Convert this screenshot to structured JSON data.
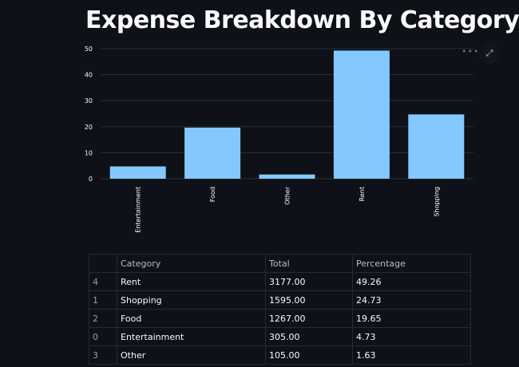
{
  "title": "Expense Breakdown By Category",
  "toolbar": {
    "menu_icon": "ellipsis-icon",
    "expand_icon": "fullscreen-icon"
  },
  "chart_data": {
    "type": "bar",
    "categories": [
      "Entertainment",
      "Food",
      "Other",
      "Rent",
      "Shopping"
    ],
    "values": [
      4.73,
      19.65,
      1.63,
      49.26,
      24.73
    ],
    "yticks": [
      "0",
      "10",
      "20",
      "30",
      "40",
      "50"
    ],
    "ylim": [
      0,
      50
    ],
    "grid": true,
    "color": "#83c9ff"
  },
  "table": {
    "columns": [
      "",
      "Category",
      "Total",
      "Percentage"
    ],
    "rows": [
      [
        "4",
        "Rent",
        "3177.00",
        "49.26"
      ],
      [
        "1",
        "Shopping",
        "1595.00",
        "24.73"
      ],
      [
        "2",
        "Food",
        "1267.00",
        "19.65"
      ],
      [
        "0",
        "Entertainment",
        "305.00",
        "4.73"
      ],
      [
        "3",
        "Other",
        "105.00",
        "1.63"
      ]
    ]
  }
}
